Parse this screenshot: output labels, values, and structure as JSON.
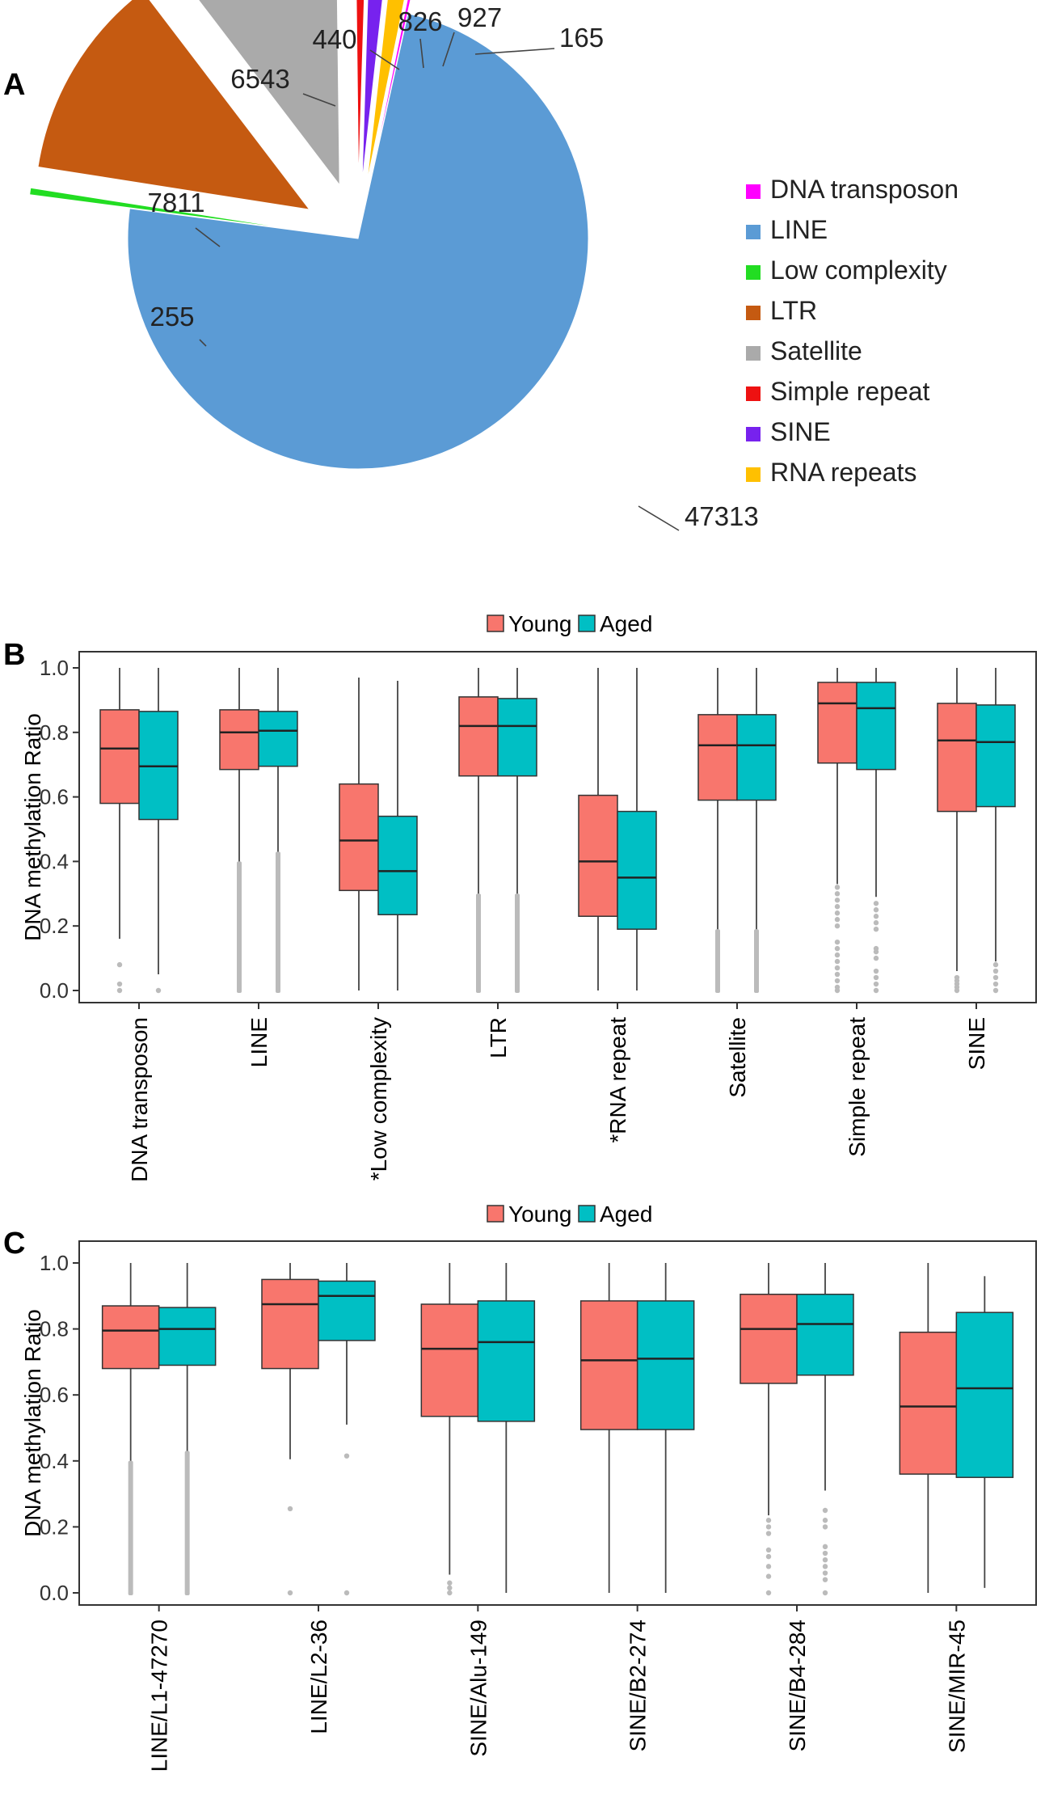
{
  "panels": {
    "a": "A",
    "b": "B",
    "c": "C"
  },
  "colors": {
    "young": "#F8766D",
    "aged": "#00BFC4",
    "outlier": "#BBBBBB"
  },
  "chart_data": [
    {
      "type": "pie",
      "panel": "A",
      "title": "",
      "slices": [
        {
          "name": "DNA transposon",
          "value": 165,
          "color": "#FF00FF"
        },
        {
          "name": "LINE",
          "value": 47313,
          "color": "#5B9BD5"
        },
        {
          "name": "Low complexity",
          "value": 255,
          "color": "#22DD22"
        },
        {
          "name": "LTR",
          "value": 7811,
          "color": "#C55A11"
        },
        {
          "name": "Satellite",
          "value": 6543,
          "color": "#AAAAAA"
        },
        {
          "name": "Simple repeat",
          "value": 440,
          "color": "#EE1111"
        },
        {
          "name": "SINE",
          "value": 826,
          "color": "#7722EE"
        },
        {
          "name": "RNA repeats",
          "value": 927,
          "color": "#FFC000"
        }
      ],
      "legend": [
        "DNA transposon",
        "LINE",
        "Low complexity",
        "LTR",
        "Satellite",
        "Simple repeat",
        "SINE",
        "RNA repeats"
      ],
      "legend_position": "right"
    },
    {
      "type": "boxplot",
      "panel": "B",
      "ylabel": "DNA methylation Ratio",
      "ylim": [
        0,
        1
      ],
      "yticks": [
        "0.0",
        "0.2",
        "0.4",
        "0.6",
        "0.8",
        "1.0"
      ],
      "legend": [
        "Young",
        "Aged"
      ],
      "legend_position": "top",
      "categories": [
        "DNA transposon",
        "LINE",
        "*Low complexity",
        "LTR",
        "*RNA repeat",
        "Satellite",
        "Simple repeat",
        "SINE"
      ],
      "series": [
        {
          "name": "Young",
          "boxes": [
            {
              "q1": 0.58,
              "median": 0.75,
              "q3": 0.87,
              "wlo": 0.16,
              "whi": 1.0,
              "out": [
                0.08,
                0.02,
                0.0
              ]
            },
            {
              "q1": 0.685,
              "median": 0.8,
              "q3": 0.87,
              "wlo": 0.4,
              "whi": 1.0,
              "band": [
                0.0,
                0.4
              ]
            },
            {
              "q1": 0.31,
              "median": 0.465,
              "q3": 0.64,
              "wlo": 0.0,
              "whi": 0.97,
              "out": []
            },
            {
              "q1": 0.665,
              "median": 0.82,
              "q3": 0.91,
              "wlo": 0.3,
              "whi": 1.0,
              "band": [
                0.0,
                0.3
              ]
            },
            {
              "q1": 0.23,
              "median": 0.4,
              "q3": 0.605,
              "wlo": 0.0,
              "whi": 1.0,
              "out": []
            },
            {
              "q1": 0.59,
              "median": 0.76,
              "q3": 0.855,
              "wlo": 0.19,
              "whi": 1.0,
              "band": [
                0.0,
                0.19
              ]
            },
            {
              "q1": 0.705,
              "median": 0.89,
              "q3": 0.955,
              "wlo": 0.33,
              "whi": 1.0,
              "out": [
                0.32,
                0.3,
                0.28,
                0.26,
                0.24,
                0.22,
                0.2,
                0.15,
                0.13,
                0.11,
                0.09,
                0.07,
                0.05,
                0.03,
                0.01,
                0.0
              ]
            },
            {
              "q1": 0.555,
              "median": 0.775,
              "q3": 0.89,
              "wlo": 0.06,
              "whi": 1.0,
              "out": [
                0.04,
                0.03,
                0.02,
                0.01,
                0.0
              ]
            }
          ]
        },
        {
          "name": "Aged",
          "boxes": [
            {
              "q1": 0.53,
              "median": 0.695,
              "q3": 0.865,
              "wlo": 0.05,
              "whi": 1.0,
              "out": [
                0.0
              ]
            },
            {
              "q1": 0.695,
              "median": 0.805,
              "q3": 0.865,
              "wlo": 0.43,
              "whi": 1.0,
              "band": [
                0.0,
                0.43
              ]
            },
            {
              "q1": 0.235,
              "median": 0.37,
              "q3": 0.54,
              "wlo": 0.0,
              "whi": 0.96,
              "out": []
            },
            {
              "q1": 0.665,
              "median": 0.82,
              "q3": 0.905,
              "wlo": 0.3,
              "whi": 1.0,
              "band": [
                0.0,
                0.3
              ]
            },
            {
              "q1": 0.19,
              "median": 0.35,
              "q3": 0.555,
              "wlo": 0.0,
              "whi": 1.0,
              "out": []
            },
            {
              "q1": 0.59,
              "median": 0.76,
              "q3": 0.855,
              "wlo": 0.19,
              "whi": 1.0,
              "band": [
                0.0,
                0.19
              ]
            },
            {
              "q1": 0.685,
              "median": 0.875,
              "q3": 0.955,
              "wlo": 0.29,
              "whi": 1.0,
              "out": [
                0.27,
                0.25,
                0.23,
                0.21,
                0.19,
                0.13,
                0.12,
                0.1,
                0.06,
                0.04,
                0.02,
                0.0
              ]
            },
            {
              "q1": 0.57,
              "median": 0.77,
              "q3": 0.885,
              "wlo": 0.09,
              "whi": 1.0,
              "out": [
                0.08,
                0.06,
                0.04,
                0.02,
                0.0
              ]
            }
          ]
        }
      ]
    },
    {
      "type": "boxplot",
      "panel": "C",
      "ylabel": "DNA methylation Ratio",
      "ylim": [
        0,
        1
      ],
      "yticks": [
        "0.0",
        "0.2",
        "0.4",
        "0.6",
        "0.8",
        "1.0"
      ],
      "legend": [
        "Young",
        "Aged"
      ],
      "legend_position": "top",
      "categories": [
        "LINE/L1-47270",
        "LINE/L2-36",
        "SINE/Alu-149",
        "SINE/B2-274",
        "SINE/B4-284",
        "SINE/MIR-45"
      ],
      "series": [
        {
          "name": "Young",
          "boxes": [
            {
              "q1": 0.68,
              "median": 0.795,
              "q3": 0.87,
              "wlo": 0.4,
              "whi": 1.0,
              "band": [
                0.0,
                0.4
              ]
            },
            {
              "q1": 0.68,
              "median": 0.875,
              "q3": 0.95,
              "wlo": 0.405,
              "whi": 1.0,
              "out": [
                0.255,
                0.0
              ]
            },
            {
              "q1": 0.535,
              "median": 0.74,
              "q3": 0.875,
              "wlo": 0.055,
              "whi": 1.0,
              "out": [
                0.03,
                0.015,
                0.0
              ]
            },
            {
              "q1": 0.495,
              "median": 0.705,
              "q3": 0.885,
              "wlo": 0.0,
              "whi": 1.0,
              "out": []
            },
            {
              "q1": 0.635,
              "median": 0.8,
              "q3": 0.905,
              "wlo": 0.235,
              "whi": 1.0,
              "out": [
                0.22,
                0.2,
                0.18,
                0.13,
                0.11,
                0.08,
                0.05,
                0.0
              ]
            },
            {
              "q1": 0.36,
              "median": 0.565,
              "q3": 0.79,
              "wlo": 0.0,
              "whi": 1.0,
              "out": []
            }
          ]
        },
        {
          "name": "Aged",
          "boxes": [
            {
              "q1": 0.69,
              "median": 0.8,
              "q3": 0.865,
              "wlo": 0.43,
              "whi": 1.0,
              "band": [
                0.0,
                0.43
              ]
            },
            {
              "q1": 0.765,
              "median": 0.9,
              "q3": 0.945,
              "wlo": 0.51,
              "whi": 1.0,
              "out": [
                0.415,
                0.0
              ]
            },
            {
              "q1": 0.52,
              "median": 0.76,
              "q3": 0.885,
              "wlo": 0.0,
              "whi": 1.0,
              "out": []
            },
            {
              "q1": 0.495,
              "median": 0.71,
              "q3": 0.885,
              "wlo": 0.0,
              "whi": 1.0,
              "out": []
            },
            {
              "q1": 0.66,
              "median": 0.815,
              "q3": 0.905,
              "wlo": 0.31,
              "whi": 1.0,
              "out": [
                0.25,
                0.22,
                0.2,
                0.14,
                0.12,
                0.1,
                0.08,
                0.06,
                0.04,
                0.0
              ]
            },
            {
              "q1": 0.35,
              "median": 0.62,
              "q3": 0.85,
              "wlo": 0.015,
              "whi": 0.96,
              "out": []
            }
          ]
        }
      ]
    }
  ]
}
